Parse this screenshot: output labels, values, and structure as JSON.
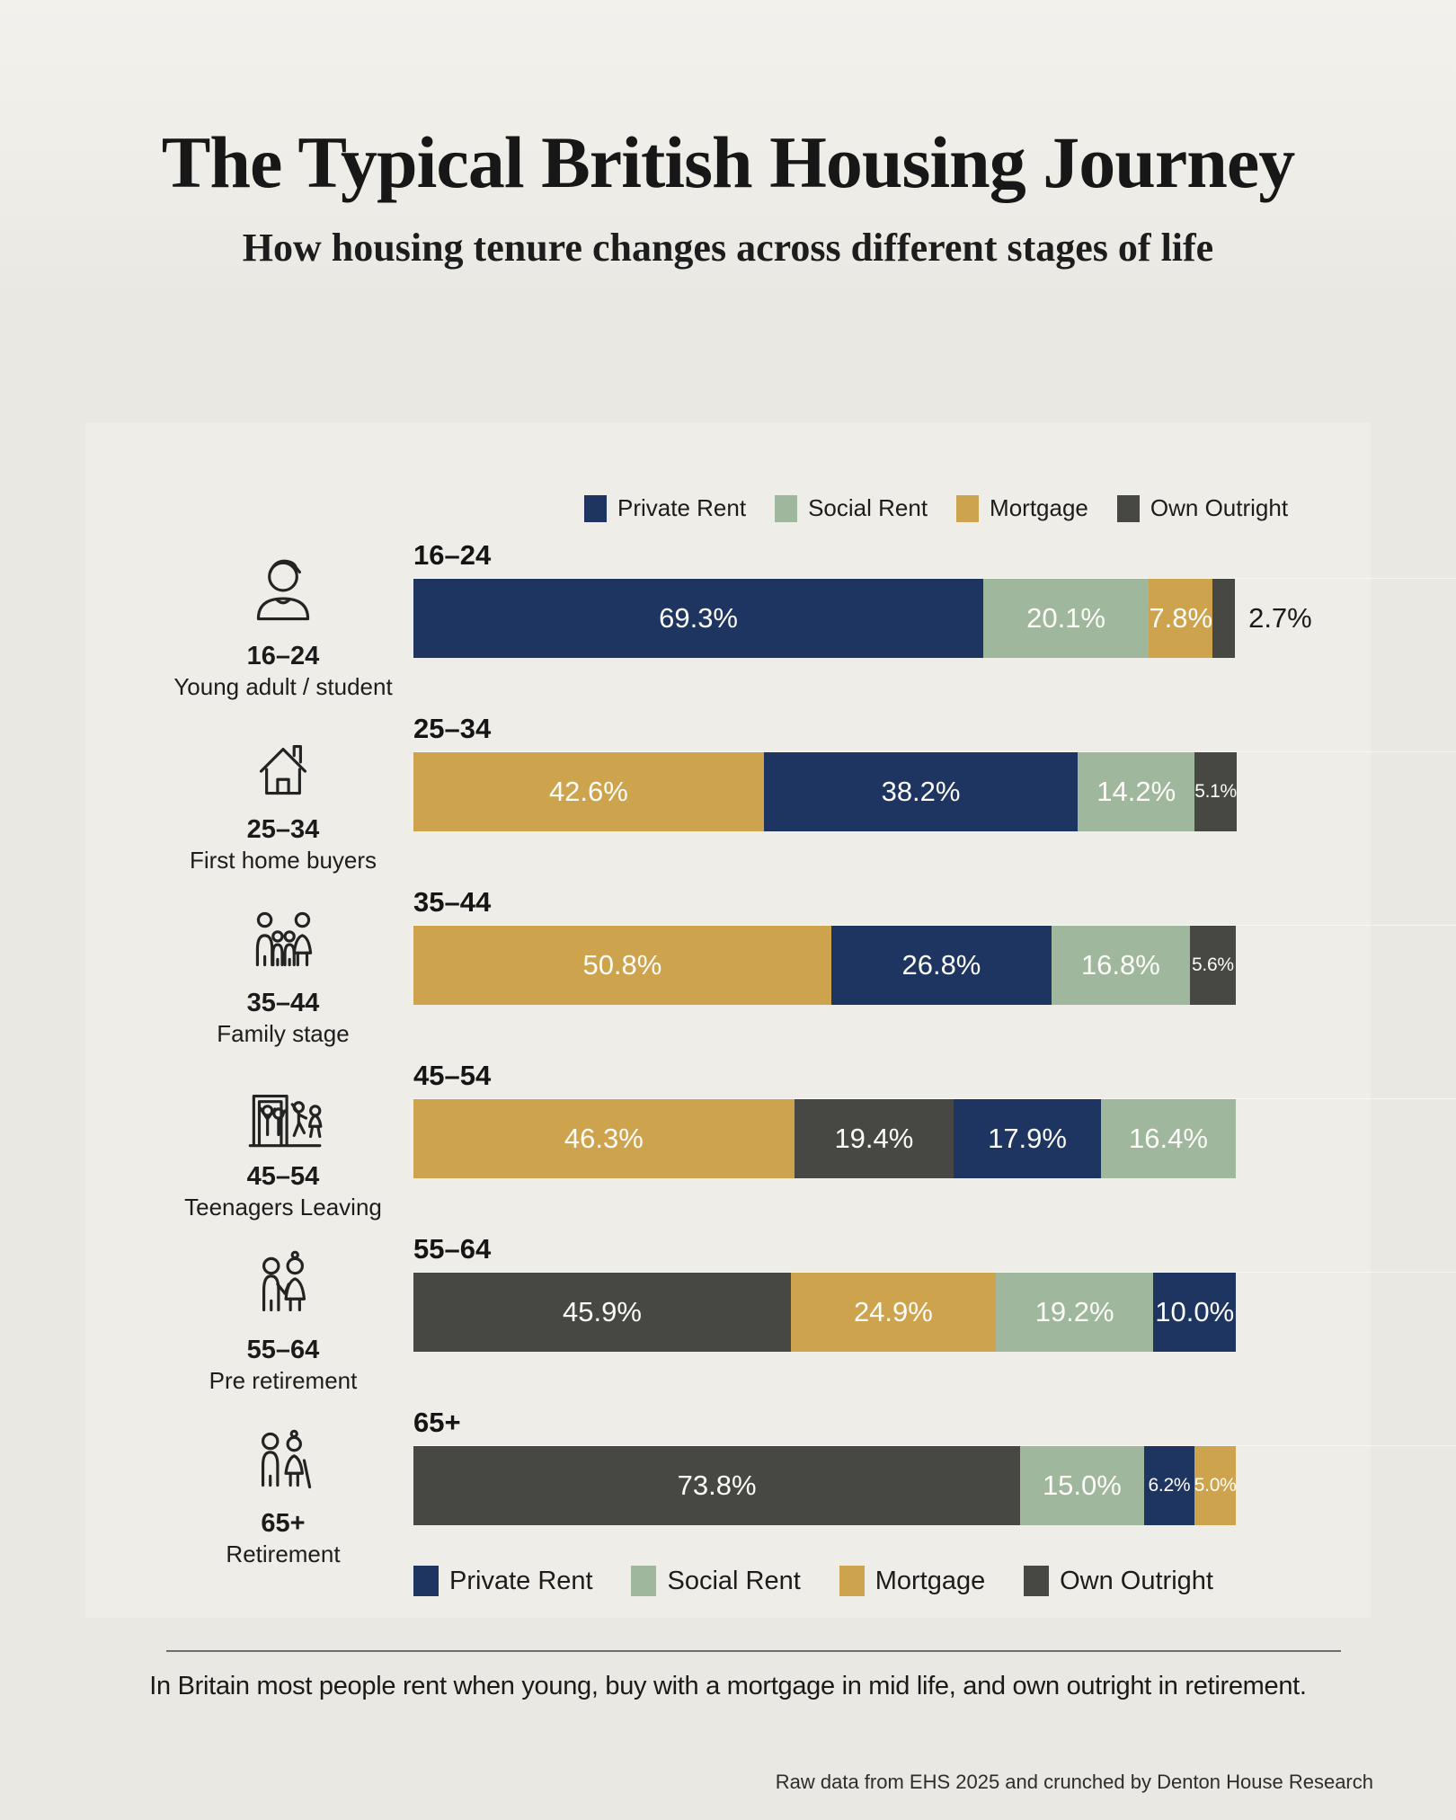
{
  "header": {
    "title": "The Typical British Housing Journey",
    "subtitle": "How housing tenure changes across different stages of life"
  },
  "legend": [
    {
      "label": "Private Rent",
      "color": "#1e3562"
    },
    {
      "label": "Social Rent",
      "color": "#9eb79d"
    },
    {
      "label": "Mortgage",
      "color": "#cda44d"
    },
    {
      "label": "Own Outright",
      "color": "#474744"
    }
  ],
  "chart_data": {
    "type": "bar",
    "orientation": "horizontal-stacked",
    "unit": "percent",
    "series_names": [
      "Private Rent",
      "Social Rent",
      "Mortgage",
      "Own Outright"
    ],
    "categories": [
      "16–24",
      "25–34",
      "35–44",
      "45–54",
      "55–64",
      "65+"
    ],
    "stage_labels": [
      "Young adult / student",
      "First home buyers",
      "Family stage",
      "Teenagers Leaving",
      "Pre retirement",
      "Retirement"
    ],
    "xlim": [
      0,
      100
    ],
    "rows": [
      {
        "age": "16–24",
        "stage": "Young adult / student",
        "icon": "young-adult-icon",
        "segments": [
          {
            "name": "Private Rent",
            "value": 69.3,
            "label": "69.3%"
          },
          {
            "name": "Social Rent",
            "value": 20.1,
            "label": "20.1%"
          },
          {
            "name": "Mortgage",
            "value": 7.8,
            "label": "7.8%"
          },
          {
            "name": "Own Outright",
            "value": 2.7,
            "label": "2.7%",
            "label_outside": true
          }
        ]
      },
      {
        "age": "25–34",
        "stage": "First home buyers",
        "icon": "house-icon",
        "segments": [
          {
            "name": "Mortgage",
            "value": 42.6,
            "label": "42.6%"
          },
          {
            "name": "Private Rent",
            "value": 38.2,
            "label": "38.2%"
          },
          {
            "name": "Social Rent",
            "value": 14.2,
            "label": "14.2%"
          },
          {
            "name": "Own Outright",
            "value": 5.1,
            "label": "5.1%"
          }
        ]
      },
      {
        "age": "35–44",
        "stage": "Family stage",
        "icon": "family-icon",
        "segments": [
          {
            "name": "Mortgage",
            "value": 50.8,
            "label": "50.8%"
          },
          {
            "name": "Private Rent",
            "value": 26.8,
            "label": "26.8%"
          },
          {
            "name": "Social Rent",
            "value": 16.8,
            "label": "16.8%"
          },
          {
            "name": "Own Outright",
            "value": 5.6,
            "label": "5.6%"
          }
        ]
      },
      {
        "age": "45–54",
        "stage": "Teenagers Leaving",
        "icon": "teenagers-leaving-icon",
        "segments": [
          {
            "name": "Mortgage",
            "value": 46.3,
            "label": "46.3%"
          },
          {
            "name": "Own Outright",
            "value": 19.4,
            "label": "19.4%"
          },
          {
            "name": "Private Rent",
            "value": 17.9,
            "label": "17.9%"
          },
          {
            "name": "Social Rent",
            "value": 16.4,
            "label": "16.4%"
          }
        ]
      },
      {
        "age": "55–64",
        "stage": "Pre retirement",
        "icon": "pre-retirement-couple-icon",
        "segments": [
          {
            "name": "Own Outright",
            "value": 45.9,
            "label": "45.9%"
          },
          {
            "name": "Mortgage",
            "value": 24.9,
            "label": "24.9%"
          },
          {
            "name": "Social Rent",
            "value": 19.2,
            "label": "19.2%"
          },
          {
            "name": "Private Rent",
            "value": 10.0,
            "label": "10.0%"
          }
        ]
      },
      {
        "age": "65+",
        "stage": "Retirement",
        "icon": "retirement-couple-icon",
        "segments": [
          {
            "name": "Own Outright",
            "value": 73.8,
            "label": "73.8%"
          },
          {
            "name": "Social Rent",
            "value": 15.0,
            "label": "15.0%"
          },
          {
            "name": "Private Rent",
            "value": 6.2,
            "label": "6.2%"
          },
          {
            "name": "Mortgage",
            "value": 5.0,
            "label": "5.0%"
          }
        ]
      }
    ]
  },
  "caption": "In Britain most people rent when young, buy with a mortgage in mid life, and own outright in retirement.",
  "footer_credit": "Raw data from EHS 2025 and crunched by Denton House Research"
}
